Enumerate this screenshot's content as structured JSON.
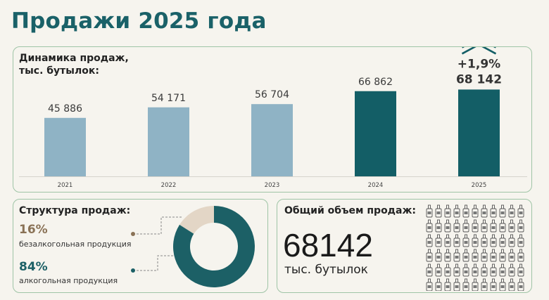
{
  "title": "Продажи 2025 года",
  "colors": {
    "title": "#1a6168",
    "bar_light": "#8fb3c5",
    "bar_dark": "#135e66",
    "donut_main": "#1c6066",
    "donut_minor": "#e3d6c6",
    "pct_non_alc": "#8a7256",
    "pct_alc": "#1c6066",
    "border": "#9fc4a6"
  },
  "chart_data": [
    {
      "type": "bar",
      "title": "Динамика продаж,\nтыс. бутылок:",
      "categories": [
        "2021",
        "2022",
        "2023",
        "2024",
        "2025"
      ],
      "values": [
        45886,
        54171,
        56704,
        66862,
        68142
      ],
      "value_labels": [
        "45 886",
        "54 171",
        "56 704",
        "66 862",
        "68 142"
      ],
      "highlight": [
        false,
        false,
        false,
        true,
        true
      ],
      "annotation": "+1,9%",
      "annotation_icon": "double-chevron-up-icon",
      "ylim": [
        0,
        75000
      ],
      "grid": false
    },
    {
      "type": "pie",
      "title": "Структура продаж:",
      "categories": [
        "безалкогольная продукция",
        "алкогольная продукция"
      ],
      "values": [
        16,
        84
      ],
      "labels": [
        "16%",
        "84%"
      ],
      "hole": true
    }
  ],
  "total": {
    "title": "Общий объем продаж:",
    "value": "68142",
    "unit": "тыс. бутылок",
    "icon": "bottle-icon"
  }
}
